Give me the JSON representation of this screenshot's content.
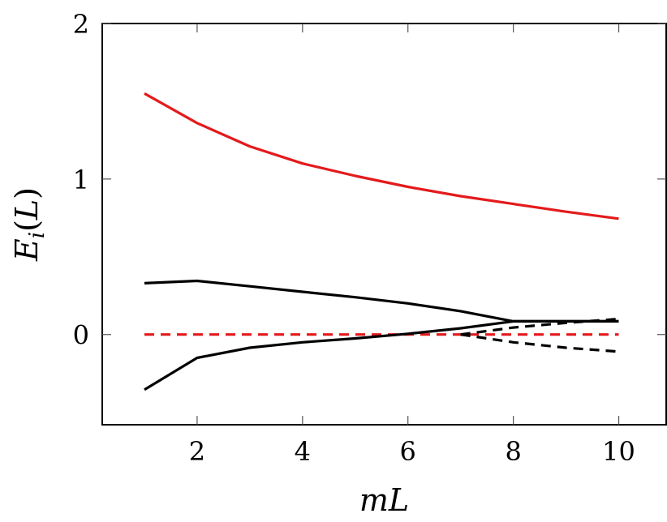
{
  "chart_data": {
    "type": "line",
    "title": "",
    "xlabel": "mL",
    "ylabel_parts": {
      "main": "E",
      "sub": "i",
      "arg_open": "(",
      "arg": "L",
      "arg_close": ")"
    },
    "xlim": [
      0.2,
      10.9
    ],
    "ylim": [
      -0.58,
      2.0
    ],
    "xticks": [
      2,
      4,
      6,
      8,
      10
    ],
    "yticks": [
      0,
      1,
      2
    ],
    "grid": false,
    "legend": "none",
    "series": [
      {
        "color": "#e41a1c",
        "dash": "solid",
        "x": [
          1,
          2,
          3,
          4,
          5,
          6,
          7,
          8,
          9,
          10
        ],
        "y": [
          1.55,
          1.36,
          1.21,
          1.1,
          1.02,
          0.95,
          0.89,
          0.84,
          0.79,
          0.745
        ]
      },
      {
        "color": "#e41a1c",
        "dash": "dashed",
        "x": [
          1,
          10
        ],
        "y": [
          0,
          0
        ]
      },
      {
        "color": "#000000",
        "dash": "solid",
        "x": [
          1,
          2,
          3,
          4,
          5,
          6,
          7,
          8,
          9,
          10
        ],
        "y": [
          0.33,
          0.345,
          0.31,
          0.275,
          0.24,
          0.2,
          0.15,
          0.085,
          0.085,
          0.085
        ]
      },
      {
        "color": "#000000",
        "dash": "solid",
        "x": [
          1,
          2,
          3,
          4,
          5,
          6,
          7,
          8,
          9,
          10
        ],
        "y": [
          -0.355,
          -0.15,
          -0.085,
          -0.05,
          -0.025,
          0.005,
          0.04,
          0.085,
          0.085,
          0.085
        ]
      },
      {
        "color": "#000000",
        "dash": "dashed",
        "x": [
          7,
          8,
          9,
          10
        ],
        "y": [
          0,
          0.045,
          0.075,
          0.1
        ]
      },
      {
        "color": "#000000",
        "dash": "dashed",
        "x": [
          7,
          8,
          9,
          10
        ],
        "y": [
          0,
          -0.05,
          -0.085,
          -0.11
        ]
      }
    ]
  }
}
